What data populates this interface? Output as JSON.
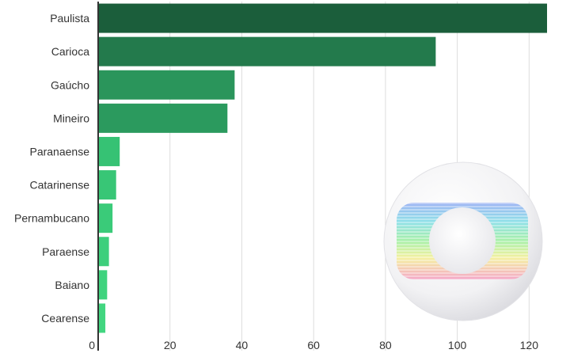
{
  "chart_data": {
    "type": "bar",
    "orientation": "horizontal",
    "title": "",
    "xlabel": "",
    "ylabel": "",
    "categories": [
      "Paulista",
      "Carioca",
      "Gaúcho",
      "Mineiro",
      "Paranaense",
      "Catarinense",
      "Pernambucano",
      "Paraense",
      "Baiano",
      "Cearense"
    ],
    "values": [
      125,
      94,
      38,
      36,
      6,
      5,
      4,
      3,
      2.5,
      2
    ],
    "colors": [
      "#1b5e3b",
      "#237a4c",
      "#2a955b",
      "#2b9a5e",
      "#36c274",
      "#38c676",
      "#3acb79",
      "#3dcf7c",
      "#3fd37e",
      "#42d680"
    ],
    "xlim": [
      0,
      125
    ],
    "xticks": [
      0,
      20,
      40,
      60,
      80,
      100,
      120
    ],
    "grid": true
  },
  "logo": {
    "name": "globo-logo"
  }
}
